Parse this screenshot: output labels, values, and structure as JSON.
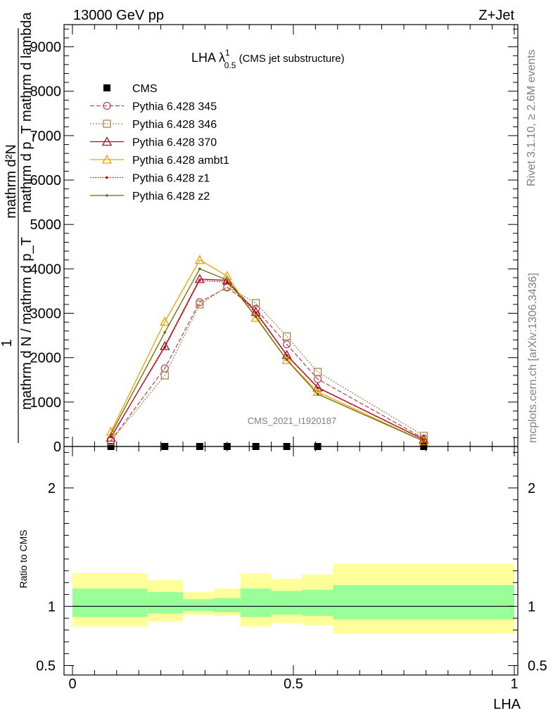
{
  "header": {
    "left": "13000 GeV pp",
    "right": "Z+Jet"
  },
  "side_labels": {
    "rivet": "Rivet 3.1.10, ≥ 2.6M events",
    "mcplots": "mcplots.cern.ch [arXiv:1306.3436]"
  },
  "watermark": "CMS_2021_I1920187",
  "chart_data": [
    {
      "type": "line",
      "title": "LHA λ",
      "title_sup": "1",
      "title_sub": "0.5",
      "title_suffix": " (CMS jet substructure)",
      "ylabel_top": "mathrm d²N",
      "ylabel_top2": "mathrm d p_T mathrm d lambda",
      "ylabel_bottom": "1",
      "ylabel_bottom2": "mathrm d N / mathrm d p_T",
      "xlabel": "LHA",
      "xlim": [
        0,
        1
      ],
      "ylim": [
        0,
        9500
      ],
      "ytick_labels": [
        "0",
        "1000",
        "2000",
        "3000",
        "4000",
        "5000",
        "6000",
        "7000",
        "8000",
        "9000"
      ],
      "grid": false,
      "legend_position": "top-left",
      "series": [
        {
          "name": "CMS",
          "marker": "square-filled",
          "color": "#000000",
          "dash": "none",
          "x": [
            0.087,
            0.209,
            0.288,
            0.35,
            0.415,
            0.485,
            0.555,
            0.795
          ],
          "y": [
            0,
            0,
            0,
            0,
            0,
            0,
            0,
            0
          ]
        },
        {
          "name": "Pythia 6.428 345",
          "marker": "circle-open",
          "color": "#b44b5a",
          "dash": "6,3",
          "x": [
            0.087,
            0.209,
            0.288,
            0.35,
            0.415,
            0.485,
            0.555,
            0.795
          ],
          "y": [
            130,
            1760,
            3250,
            3580,
            3100,
            2300,
            1520,
            180
          ]
        },
        {
          "name": "Pythia 6.428 346",
          "marker": "square-open",
          "color": "#a8874f",
          "dash": "2,2",
          "x": [
            0.087,
            0.209,
            0.288,
            0.35,
            0.415,
            0.485,
            0.555,
            0.795
          ],
          "y": [
            120,
            1600,
            3200,
            3600,
            3230,
            2480,
            1680,
            240
          ]
        },
        {
          "name": "Pythia 6.428 370",
          "marker": "triangle-open",
          "color": "#a01028",
          "dash": "none",
          "x": [
            0.087,
            0.209,
            0.288,
            0.35,
            0.415,
            0.485,
            0.555,
            0.795
          ],
          "y": [
            200,
            2260,
            3770,
            3740,
            3030,
            2060,
            1330,
            160
          ]
        },
        {
          "name": "Pythia 6.428 ambt1",
          "marker": "triangle-open",
          "color": "#f0a000",
          "dash": "none",
          "x": [
            0.087,
            0.209,
            0.288,
            0.35,
            0.415,
            0.485,
            0.555,
            0.795
          ],
          "y": [
            330,
            2810,
            4200,
            3840,
            2900,
            1950,
            1230,
            120
          ]
        },
        {
          "name": "Pythia 6.428 z1",
          "marker": "dot",
          "color": "#c00000",
          "dash": "1.5,2",
          "x": [
            0.087,
            0.209,
            0.288,
            0.35,
            0.415,
            0.485,
            0.555,
            0.795
          ],
          "y": [
            220,
            2230,
            3740,
            3700,
            3010,
            2050,
            1320,
            150
          ]
        },
        {
          "name": "Pythia 6.428 z2",
          "marker": "dot",
          "color": "#6b6b00",
          "dash": "none",
          "x": [
            0.087,
            0.209,
            0.288,
            0.35,
            0.415,
            0.485,
            0.555,
            0.795
          ],
          "y": [
            280,
            2570,
            4000,
            3750,
            2920,
            1950,
            1180,
            120
          ]
        }
      ]
    },
    {
      "type": "area",
      "ylabel": "Ratio to CMS",
      "xlabel": "LHA",
      "xlim": [
        0,
        1
      ],
      "ylim": [
        0.42,
        2.35
      ],
      "ytick_labels": [
        "0.5",
        "1",
        "2"
      ],
      "xtick_labels": [
        "0",
        "0.5",
        "1"
      ],
      "bands": {
        "edges": [
          0,
          0.17,
          0.25,
          0.32,
          0.38,
          0.45,
          0.52,
          0.59,
          1.0
        ],
        "yellow_colors": "#ffff99",
        "green_colors": "#99ff99",
        "yellow_lo": [
          0.83,
          0.87,
          0.93,
          0.92,
          0.83,
          0.86,
          0.84,
          0.77
        ],
        "yellow_hi": [
          1.28,
          1.22,
          1.12,
          1.15,
          1.28,
          1.23,
          1.27,
          1.36
        ],
        "green_lo": [
          0.91,
          0.94,
          0.96,
          0.95,
          0.91,
          0.93,
          0.92,
          0.89
        ],
        "green_hi": [
          1.15,
          1.12,
          1.06,
          1.07,
          1.15,
          1.13,
          1.14,
          1.18
        ]
      }
    }
  ]
}
